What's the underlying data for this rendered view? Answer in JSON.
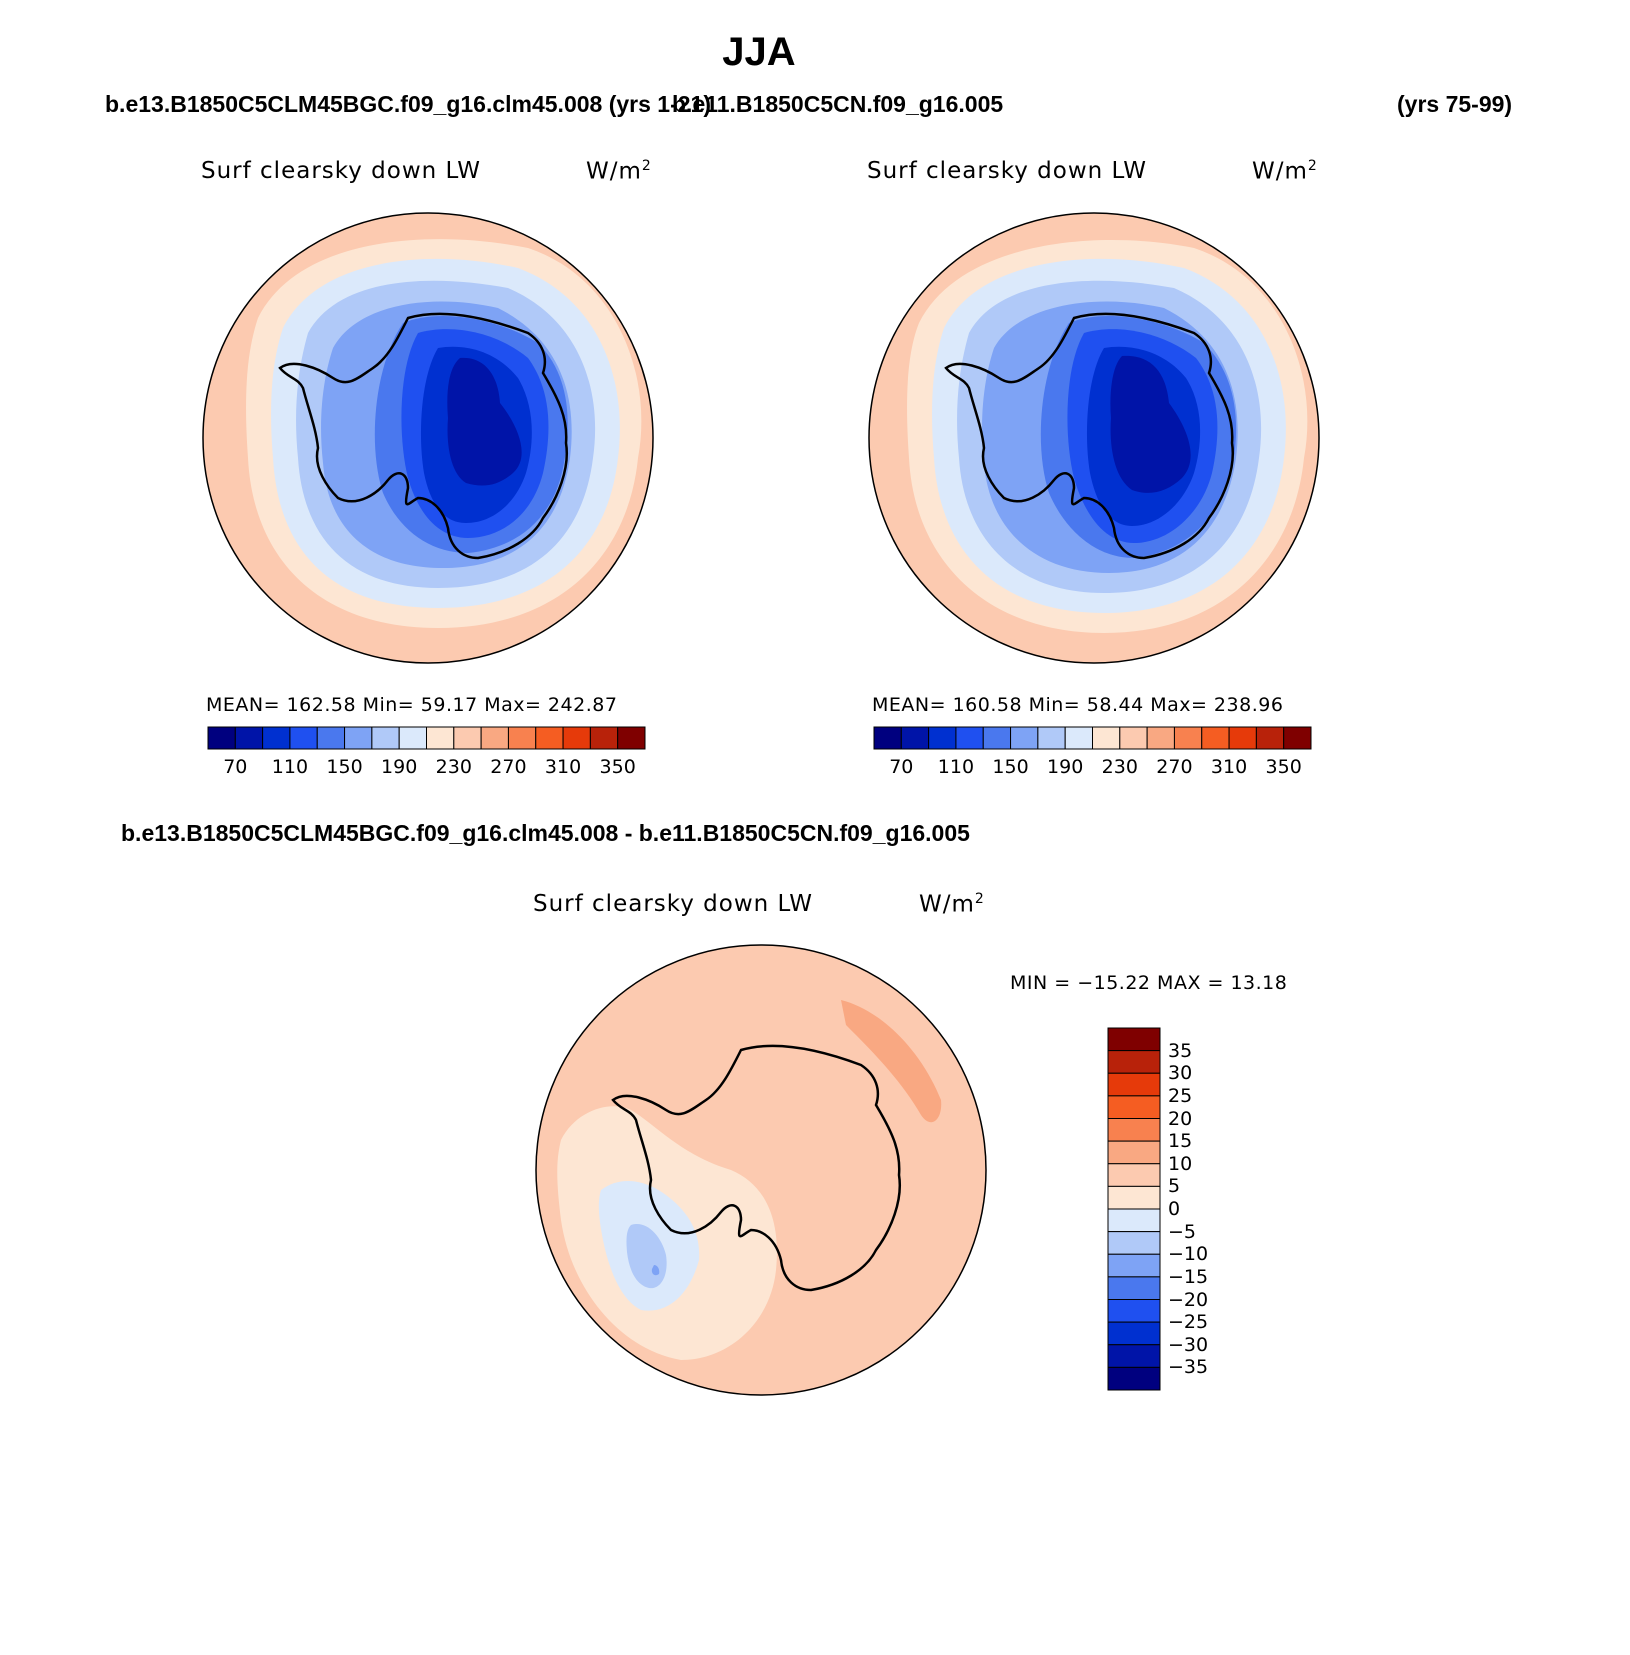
{
  "title": "JJA",
  "header": {
    "case1_label": "b.e13.B1850C5CLM45BGC.f09_g16.clm45.008 (yrs 1-21)",
    "case2_label": "b.e11.B1850C5CN.f09_g16.005",
    "case2_years": "(yrs 75-99)",
    "diff_label": "b.e13.B1850C5CLM45BGC.f09_g16.clm45.008 - b.e11.B1850C5CN.f09_g16.005"
  },
  "panels": [
    {
      "variable": "Surf clearsky down LW",
      "units": "W/m",
      "units_exp": "2",
      "stats_text": "MEAN= 162.58   Min=   59.17   Max= 242.87",
      "map_levels": [
        230,
        210,
        190,
        170,
        150,
        130,
        110,
        90,
        70
      ]
    },
    {
      "variable": "Surf clearsky down LW",
      "units": "W/m",
      "units_exp": "2",
      "stats_text": "MEAN= 160.58   Min=   58.44   Max= 238.96",
      "map_levels": [
        230,
        210,
        190,
        170,
        150,
        130,
        110,
        90,
        70
      ]
    },
    {
      "variable": "Surf clearsky down LW",
      "units": "W/m",
      "units_exp": "2",
      "stats_text": "MIN = −15.22 MAX =  13.18",
      "map_levels": [
        5,
        10,
        0,
        -5,
        -10
      ]
    }
  ],
  "colorbar_main": {
    "colors": [
      "#00007f",
      "#0014a8",
      "#0030d0",
      "#1f50f0",
      "#4a78ee",
      "#7ea3f5",
      "#b0c9f8",
      "#dbe9fb",
      "#fde6d3",
      "#fccab0",
      "#f9a882",
      "#f8814f",
      "#f55d22",
      "#e63a0a",
      "#b8220a",
      "#7f0000"
    ],
    "tick_labels": [
      "70",
      "110",
      "150",
      "190",
      "230",
      "270",
      "310",
      "350"
    ]
  },
  "colorbar_diff": {
    "colors_top_to_bottom": [
      "#7f0000",
      "#b8220a",
      "#e63a0a",
      "#f55d22",
      "#f8814f",
      "#f9a882",
      "#fccab0",
      "#fde6d3",
      "#dbe9fb",
      "#b0c9f8",
      "#7ea3f5",
      "#4a78ee",
      "#1f50f0",
      "#0030d0",
      "#0014a8",
      "#00007f"
    ],
    "tick_labels": [
      "35",
      "30",
      "25",
      "20",
      "15",
      "10",
      "5",
      "0",
      "−5",
      "−10",
      "−15",
      "−20",
      "−25",
      "−30",
      "−35"
    ]
  },
  "colors": {
    "outline": "#000000",
    "background": "#ffffff"
  }
}
